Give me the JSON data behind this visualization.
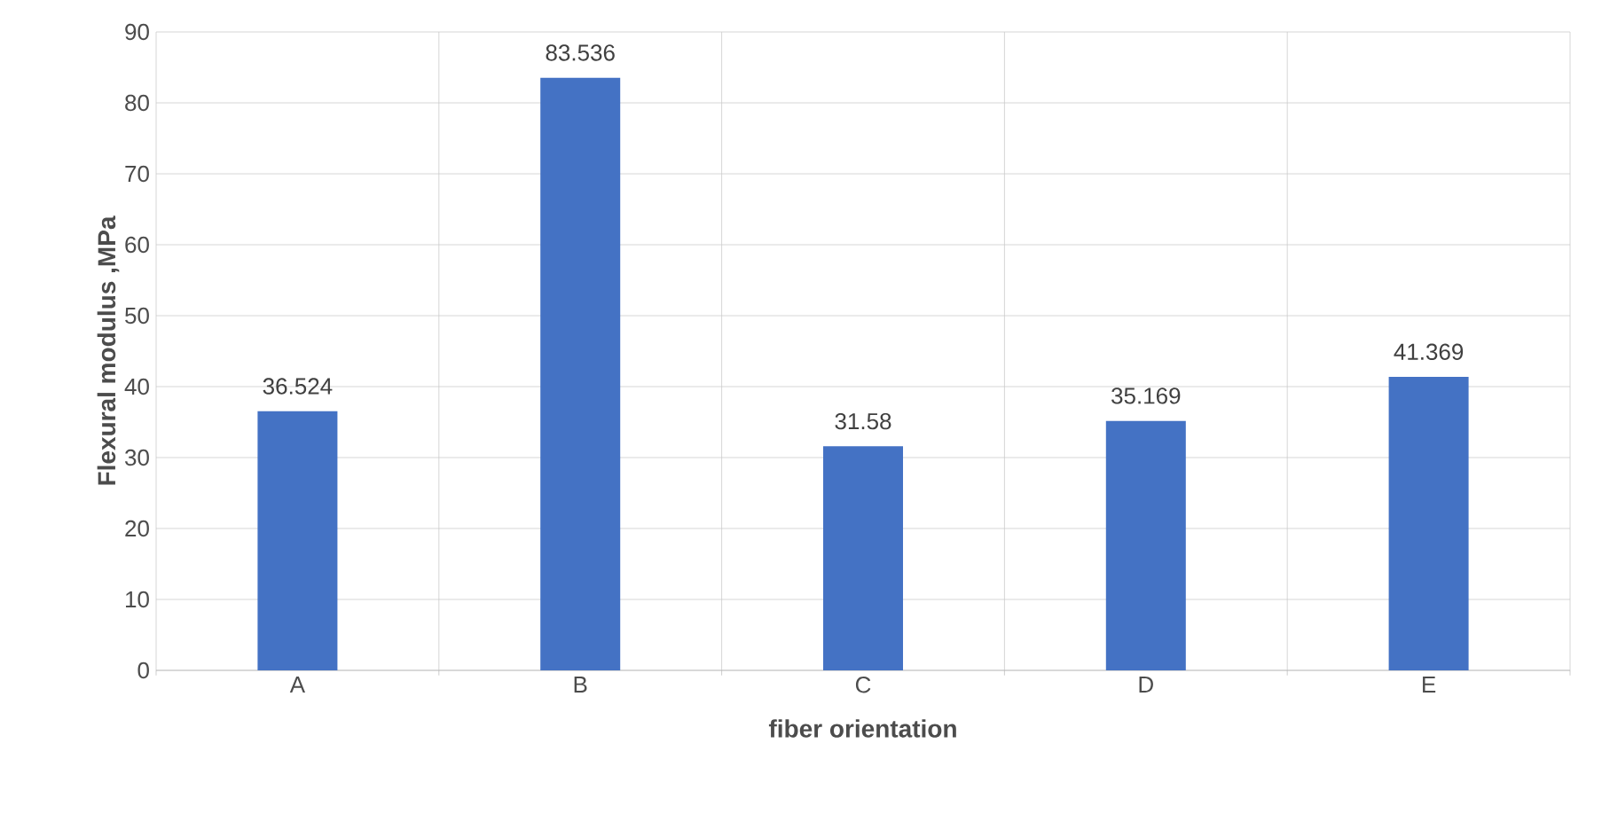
{
  "chart_data": {
    "type": "bar",
    "xlabel": "fiber orientation",
    "ylabel": "Flexural modulus ,MPa",
    "categories": [
      "A",
      "B",
      "C",
      "D",
      "E"
    ],
    "values": [
      36.524,
      83.536,
      31.58,
      35.169,
      41.369
    ],
    "color": "#4472c4",
    "ylim": [
      0,
      90
    ],
    "yticks": [
      0,
      10,
      20,
      30,
      40,
      50,
      60,
      70,
      80,
      90
    ],
    "grid": true,
    "data_labels": true
  }
}
